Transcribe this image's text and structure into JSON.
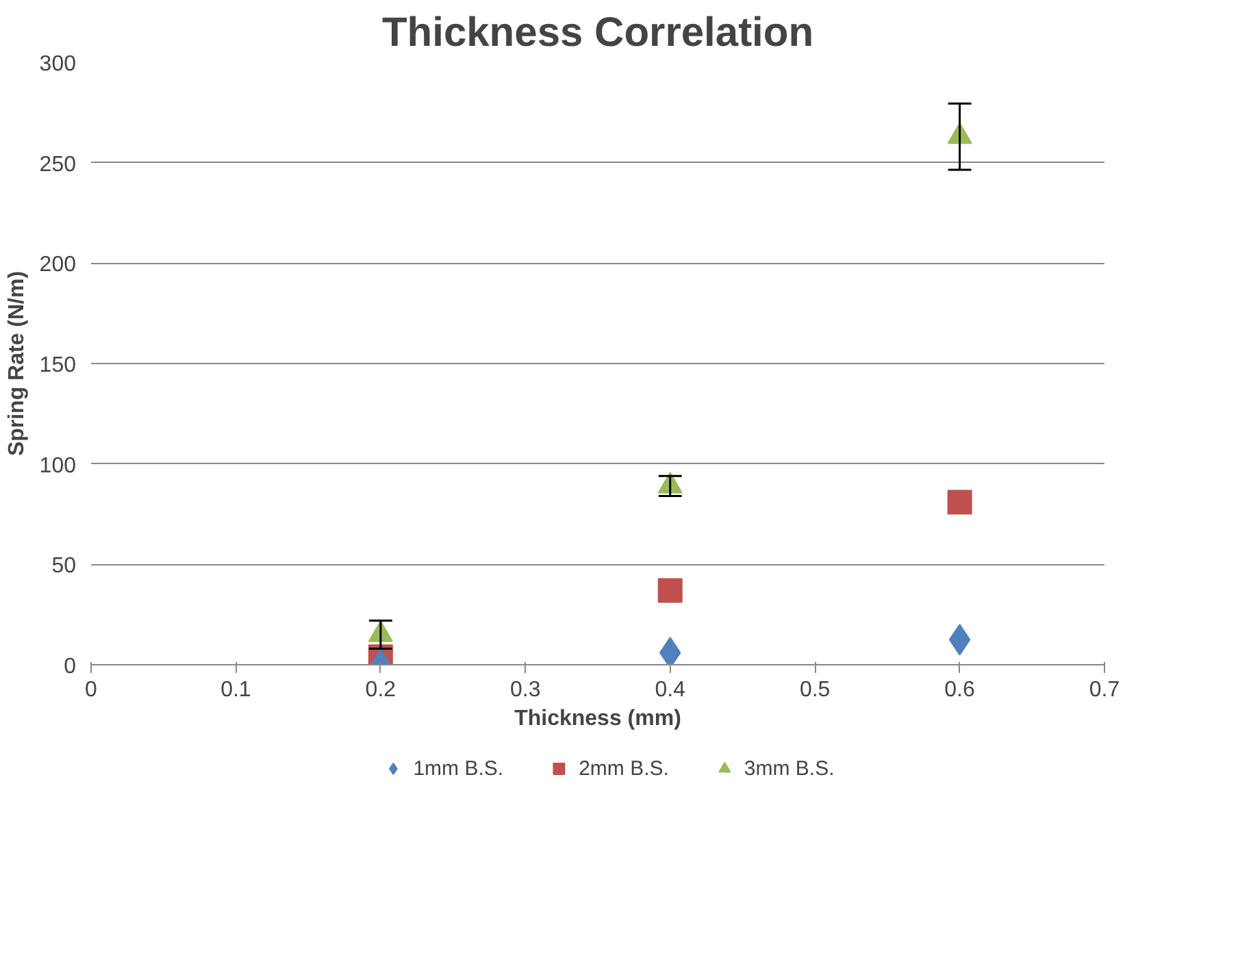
{
  "chart_data": {
    "type": "scatter",
    "title": "Thickness Correlation",
    "xlabel": "Thickness (mm)",
    "ylabel": "Spring Rate (N/m)",
    "x": [
      0.2,
      0.4,
      0.6
    ],
    "series": [
      {
        "name": "1mm B.S.",
        "color": "#4f81bd",
        "marker": "diamond",
        "values": [
          0,
          6,
          12.5
        ]
      },
      {
        "name": "2mm B.S.",
        "color": "#c0504d",
        "marker": "square",
        "values": [
          4,
          37,
          81
        ]
      },
      {
        "name": "3mm B.S.",
        "color": "#9bbb59",
        "marker": "triangle",
        "values": [
          15,
          89,
          263
        ],
        "errors": [
          7,
          5,
          16.5
        ]
      }
    ],
    "xlim": [
      0,
      0.7
    ],
    "xticks": [
      0,
      0.1,
      0.2,
      0.3,
      0.4,
      0.5,
      0.6,
      0.7
    ],
    "ylim": [
      0,
      300
    ],
    "yticks": [
      0,
      50,
      100,
      150,
      200,
      250,
      300
    ],
    "grid": "y",
    "legend": "bottom"
  }
}
